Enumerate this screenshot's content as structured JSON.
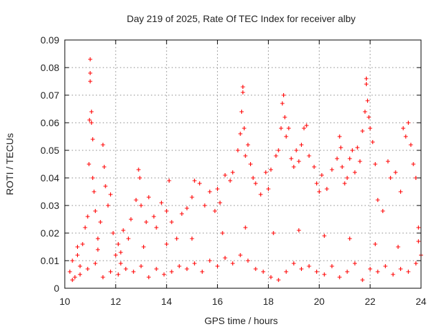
{
  "chart_data": {
    "type": "scatter",
    "title": "Day 219 of 2025, Rate Of TEC Index for receiver alby",
    "xlabel": "GPS time / hours",
    "ylabel": "ROTI / TECUs",
    "xlim": [
      10,
      24
    ],
    "ylim": [
      0,
      0.09
    ],
    "xticks": [
      10,
      12,
      14,
      16,
      18,
      20,
      22,
      24
    ],
    "xtick_labels": [
      "10",
      "12",
      "14",
      "16",
      "18",
      "20",
      "22",
      "24"
    ],
    "yticks": [
      0,
      0.01,
      0.02,
      0.03,
      0.04,
      0.05,
      0.06,
      0.07,
      0.08,
      0.09
    ],
    "ytick_labels": [
      "0",
      "0.01",
      "0.02",
      "0.03",
      "0.04",
      "0.05",
      "0.06",
      "0.07",
      "0.08",
      "0.09"
    ],
    "grid": true,
    "marker": "+",
    "color": "#ff0000",
    "points": [
      [
        10.2,
        0.006
      ],
      [
        10.3,
        0.01
      ],
      [
        10.4,
        0.004
      ],
      [
        10.5,
        0.012
      ],
      [
        10.6,
        0.008
      ],
      [
        10.7,
        0.016
      ],
      [
        10.8,
        0.022
      ],
      [
        10.9,
        0.026
      ],
      [
        10.95,
        0.045
      ],
      [
        10.97,
        0.061
      ],
      [
        11.0,
        0.083
      ],
      [
        11.0,
        0.078
      ],
      [
        11.0,
        0.075
      ],
      [
        11.05,
        0.064
      ],
      [
        11.05,
        0.06
      ],
      [
        11.1,
        0.054
      ],
      [
        11.1,
        0.04
      ],
      [
        11.15,
        0.035
      ],
      [
        11.2,
        0.028
      ],
      [
        11.3,
        0.018
      ],
      [
        11.4,
        0.024
      ],
      [
        11.5,
        0.052
      ],
      [
        11.55,
        0.044
      ],
      [
        11.6,
        0.037
      ],
      [
        11.7,
        0.03
      ],
      [
        11.8,
        0.034
      ],
      [
        11.9,
        0.02
      ],
      [
        12.0,
        0.012
      ],
      [
        12.1,
        0.016
      ],
      [
        12.2,
        0.009
      ],
      [
        12.3,
        0.021
      ],
      [
        12.5,
        0.018
      ],
      [
        12.6,
        0.025
      ],
      [
        12.8,
        0.032
      ],
      [
        12.9,
        0.043
      ],
      [
        12.95,
        0.04
      ],
      [
        13.0,
        0.03
      ],
      [
        13.2,
        0.024
      ],
      [
        13.3,
        0.033
      ],
      [
        13.5,
        0.026
      ],
      [
        13.6,
        0.022
      ],
      [
        13.8,
        0.031
      ],
      [
        14.0,
        0.028
      ],
      [
        14.1,
        0.039
      ],
      [
        14.2,
        0.024
      ],
      [
        14.4,
        0.018
      ],
      [
        14.6,
        0.027
      ],
      [
        14.8,
        0.029
      ],
      [
        15.0,
        0.033
      ],
      [
        15.1,
        0.039
      ],
      [
        15.3,
        0.038
      ],
      [
        15.5,
        0.03
      ],
      [
        15.7,
        0.035
      ],
      [
        15.9,
        0.028
      ],
      [
        16.0,
        0.036
      ],
      [
        16.1,
        0.031
      ],
      [
        16.3,
        0.041
      ],
      [
        16.5,
        0.039
      ],
      [
        16.6,
        0.042
      ],
      [
        16.8,
        0.05
      ],
      [
        16.9,
        0.056
      ],
      [
        16.95,
        0.064
      ],
      [
        17.0,
        0.073
      ],
      [
        17.0,
        0.071
      ],
      [
        17.05,
        0.058
      ],
      [
        17.1,
        0.048
      ],
      [
        17.2,
        0.052
      ],
      [
        17.3,
        0.045
      ],
      [
        17.4,
        0.04
      ],
      [
        17.5,
        0.038
      ],
      [
        17.7,
        0.034
      ],
      [
        17.9,
        0.042
      ],
      [
        18.0,
        0.036
      ],
      [
        18.1,
        0.043
      ],
      [
        18.3,
        0.048
      ],
      [
        18.4,
        0.05
      ],
      [
        18.5,
        0.058
      ],
      [
        18.55,
        0.067
      ],
      [
        18.6,
        0.07
      ],
      [
        18.65,
        0.062
      ],
      [
        18.7,
        0.055
      ],
      [
        18.8,
        0.058
      ],
      [
        18.9,
        0.047
      ],
      [
        19.0,
        0.044
      ],
      [
        19.1,
        0.05
      ],
      [
        19.2,
        0.046
      ],
      [
        19.3,
        0.052
      ],
      [
        19.4,
        0.058
      ],
      [
        19.5,
        0.059
      ],
      [
        19.6,
        0.048
      ],
      [
        19.8,
        0.044
      ],
      [
        19.9,
        0.038
      ],
      [
        20.0,
        0.035
      ],
      [
        20.1,
        0.041
      ],
      [
        20.3,
        0.036
      ],
      [
        20.5,
        0.043
      ],
      [
        20.7,
        0.047
      ],
      [
        20.8,
        0.055
      ],
      [
        20.85,
        0.051
      ],
      [
        20.9,
        0.044
      ],
      [
        21.0,
        0.038
      ],
      [
        21.1,
        0.04
      ],
      [
        21.2,
        0.047
      ],
      [
        21.3,
        0.05
      ],
      [
        21.4,
        0.042
      ],
      [
        21.5,
        0.051
      ],
      [
        21.6,
        0.046
      ],
      [
        21.7,
        0.057
      ],
      [
        21.8,
        0.064
      ],
      [
        21.85,
        0.076
      ],
      [
        21.85,
        0.074
      ],
      [
        21.9,
        0.068
      ],
      [
        21.95,
        0.062
      ],
      [
        22.0,
        0.058
      ],
      [
        22.1,
        0.053
      ],
      [
        22.2,
        0.045
      ],
      [
        22.3,
        0.032
      ],
      [
        22.5,
        0.028
      ],
      [
        22.7,
        0.046
      ],
      [
        22.8,
        0.04
      ],
      [
        23.0,
        0.042
      ],
      [
        23.2,
        0.035
      ],
      [
        23.3,
        0.058
      ],
      [
        23.4,
        0.055
      ],
      [
        23.5,
        0.06
      ],
      [
        23.6,
        0.052
      ],
      [
        23.7,
        0.045
      ],
      [
        23.8,
        0.04
      ],
      [
        23.9,
        0.022
      ],
      [
        24.0,
        0.012
      ],
      [
        10.3,
        0.003
      ],
      [
        10.6,
        0.005
      ],
      [
        10.9,
        0.007
      ],
      [
        11.2,
        0.009
      ],
      [
        11.5,
        0.004
      ],
      [
        11.8,
        0.006
      ],
      [
        12.1,
        0.005
      ],
      [
        12.4,
        0.007
      ],
      [
        12.7,
        0.006
      ],
      [
        13.0,
        0.008
      ],
      [
        13.3,
        0.004
      ],
      [
        13.6,
        0.007
      ],
      [
        13.9,
        0.005
      ],
      [
        14.2,
        0.006
      ],
      [
        14.5,
        0.008
      ],
      [
        14.8,
        0.007
      ],
      [
        15.1,
        0.009
      ],
      [
        15.4,
        0.006
      ],
      [
        15.7,
        0.01
      ],
      [
        16.0,
        0.008
      ],
      [
        16.3,
        0.011
      ],
      [
        16.6,
        0.009
      ],
      [
        16.9,
        0.012
      ],
      [
        17.2,
        0.01
      ],
      [
        17.5,
        0.007
      ],
      [
        17.8,
        0.006
      ],
      [
        18.1,
        0.004
      ],
      [
        18.4,
        0.003
      ],
      [
        18.7,
        0.006
      ],
      [
        19.0,
        0.009
      ],
      [
        19.3,
        0.007
      ],
      [
        19.6,
        0.008
      ],
      [
        19.9,
        0.006
      ],
      [
        20.2,
        0.005
      ],
      [
        20.5,
        0.008
      ],
      [
        20.8,
        0.004
      ],
      [
        21.1,
        0.006
      ],
      [
        21.4,
        0.009
      ],
      [
        21.7,
        0.003
      ],
      [
        22.0,
        0.007
      ],
      [
        22.3,
        0.006
      ],
      [
        22.6,
        0.008
      ],
      [
        22.9,
        0.005
      ],
      [
        23.2,
        0.007
      ],
      [
        23.5,
        0.006
      ],
      [
        23.8,
        0.009
      ],
      [
        10.5,
        0.015
      ],
      [
        11.3,
        0.014
      ],
      [
        12.2,
        0.013
      ],
      [
        13.1,
        0.015
      ],
      [
        14.0,
        0.016
      ],
      [
        15.0,
        0.018
      ],
      [
        16.2,
        0.02
      ],
      [
        17.1,
        0.022
      ],
      [
        18.2,
        0.02
      ],
      [
        19.2,
        0.021
      ],
      [
        20.2,
        0.019
      ],
      [
        21.2,
        0.018
      ],
      [
        22.2,
        0.016
      ],
      [
        23.1,
        0.015
      ],
      [
        23.9,
        0.017
      ]
    ]
  }
}
